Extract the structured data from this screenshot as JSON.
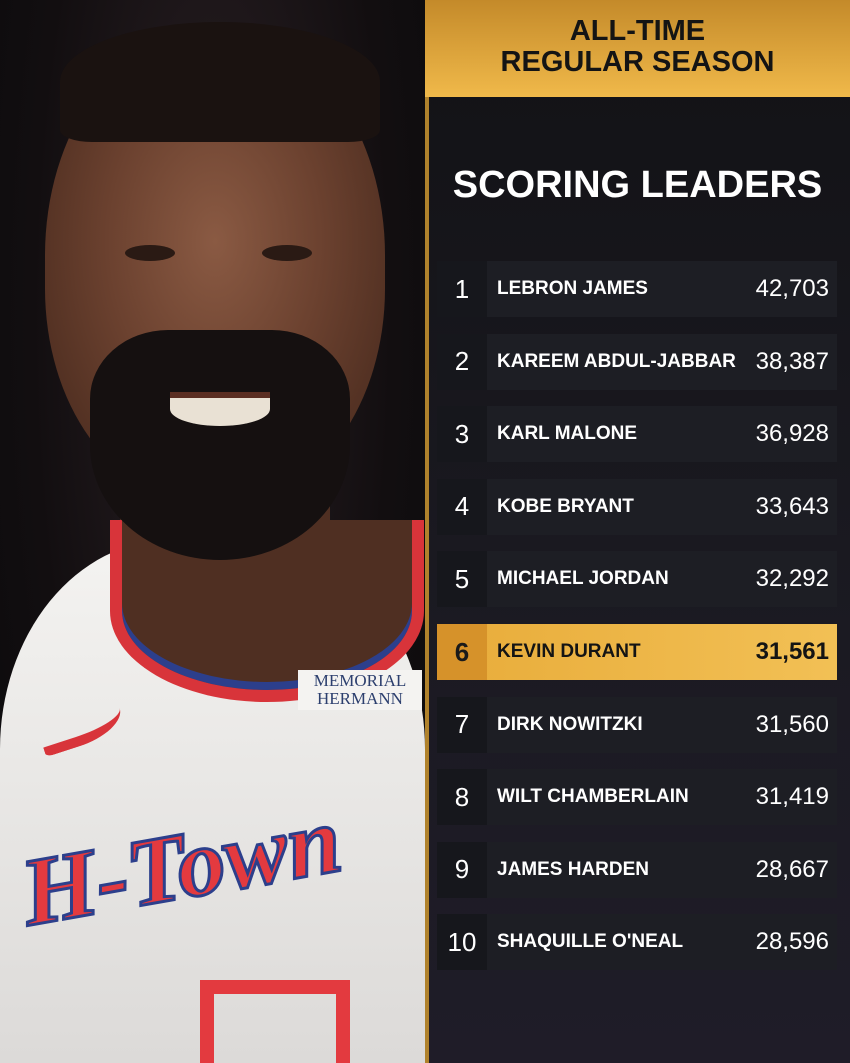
{
  "header": {
    "line1": "ALL-TIME",
    "line2": "REGULAR SEASON"
  },
  "title": "SCORING LEADERS",
  "photo": {
    "jersey_text": "H-Town",
    "sponsor_text": "MEMORIAL HERMANN"
  },
  "colors": {
    "gold": "#f0b94a",
    "dark": "#1d1e24",
    "highlight": "#e8ac3a"
  },
  "highlighted_rank": 6,
  "leaders": [
    {
      "rank": "1",
      "name": "LEBRON JAMES",
      "points": "42,703"
    },
    {
      "rank": "2",
      "name": "KAREEM ABDUL-JABBAR",
      "points": "38,387"
    },
    {
      "rank": "3",
      "name": "KARL MALONE",
      "points": "36,928"
    },
    {
      "rank": "4",
      "name": "KOBE BRYANT",
      "points": "33,643"
    },
    {
      "rank": "5",
      "name": "MICHAEL JORDAN",
      "points": "32,292"
    },
    {
      "rank": "6",
      "name": "KEVIN DURANT",
      "points": "31,561"
    },
    {
      "rank": "7",
      "name": "DIRK NOWITZKI",
      "points": "31,560"
    },
    {
      "rank": "8",
      "name": "WILT CHAMBERLAIN",
      "points": "31,419"
    },
    {
      "rank": "9",
      "name": "JAMES HARDEN",
      "points": "28,667"
    },
    {
      "rank": "10",
      "name": "SHAQUILLE O'NEAL",
      "points": "28,596"
    }
  ]
}
